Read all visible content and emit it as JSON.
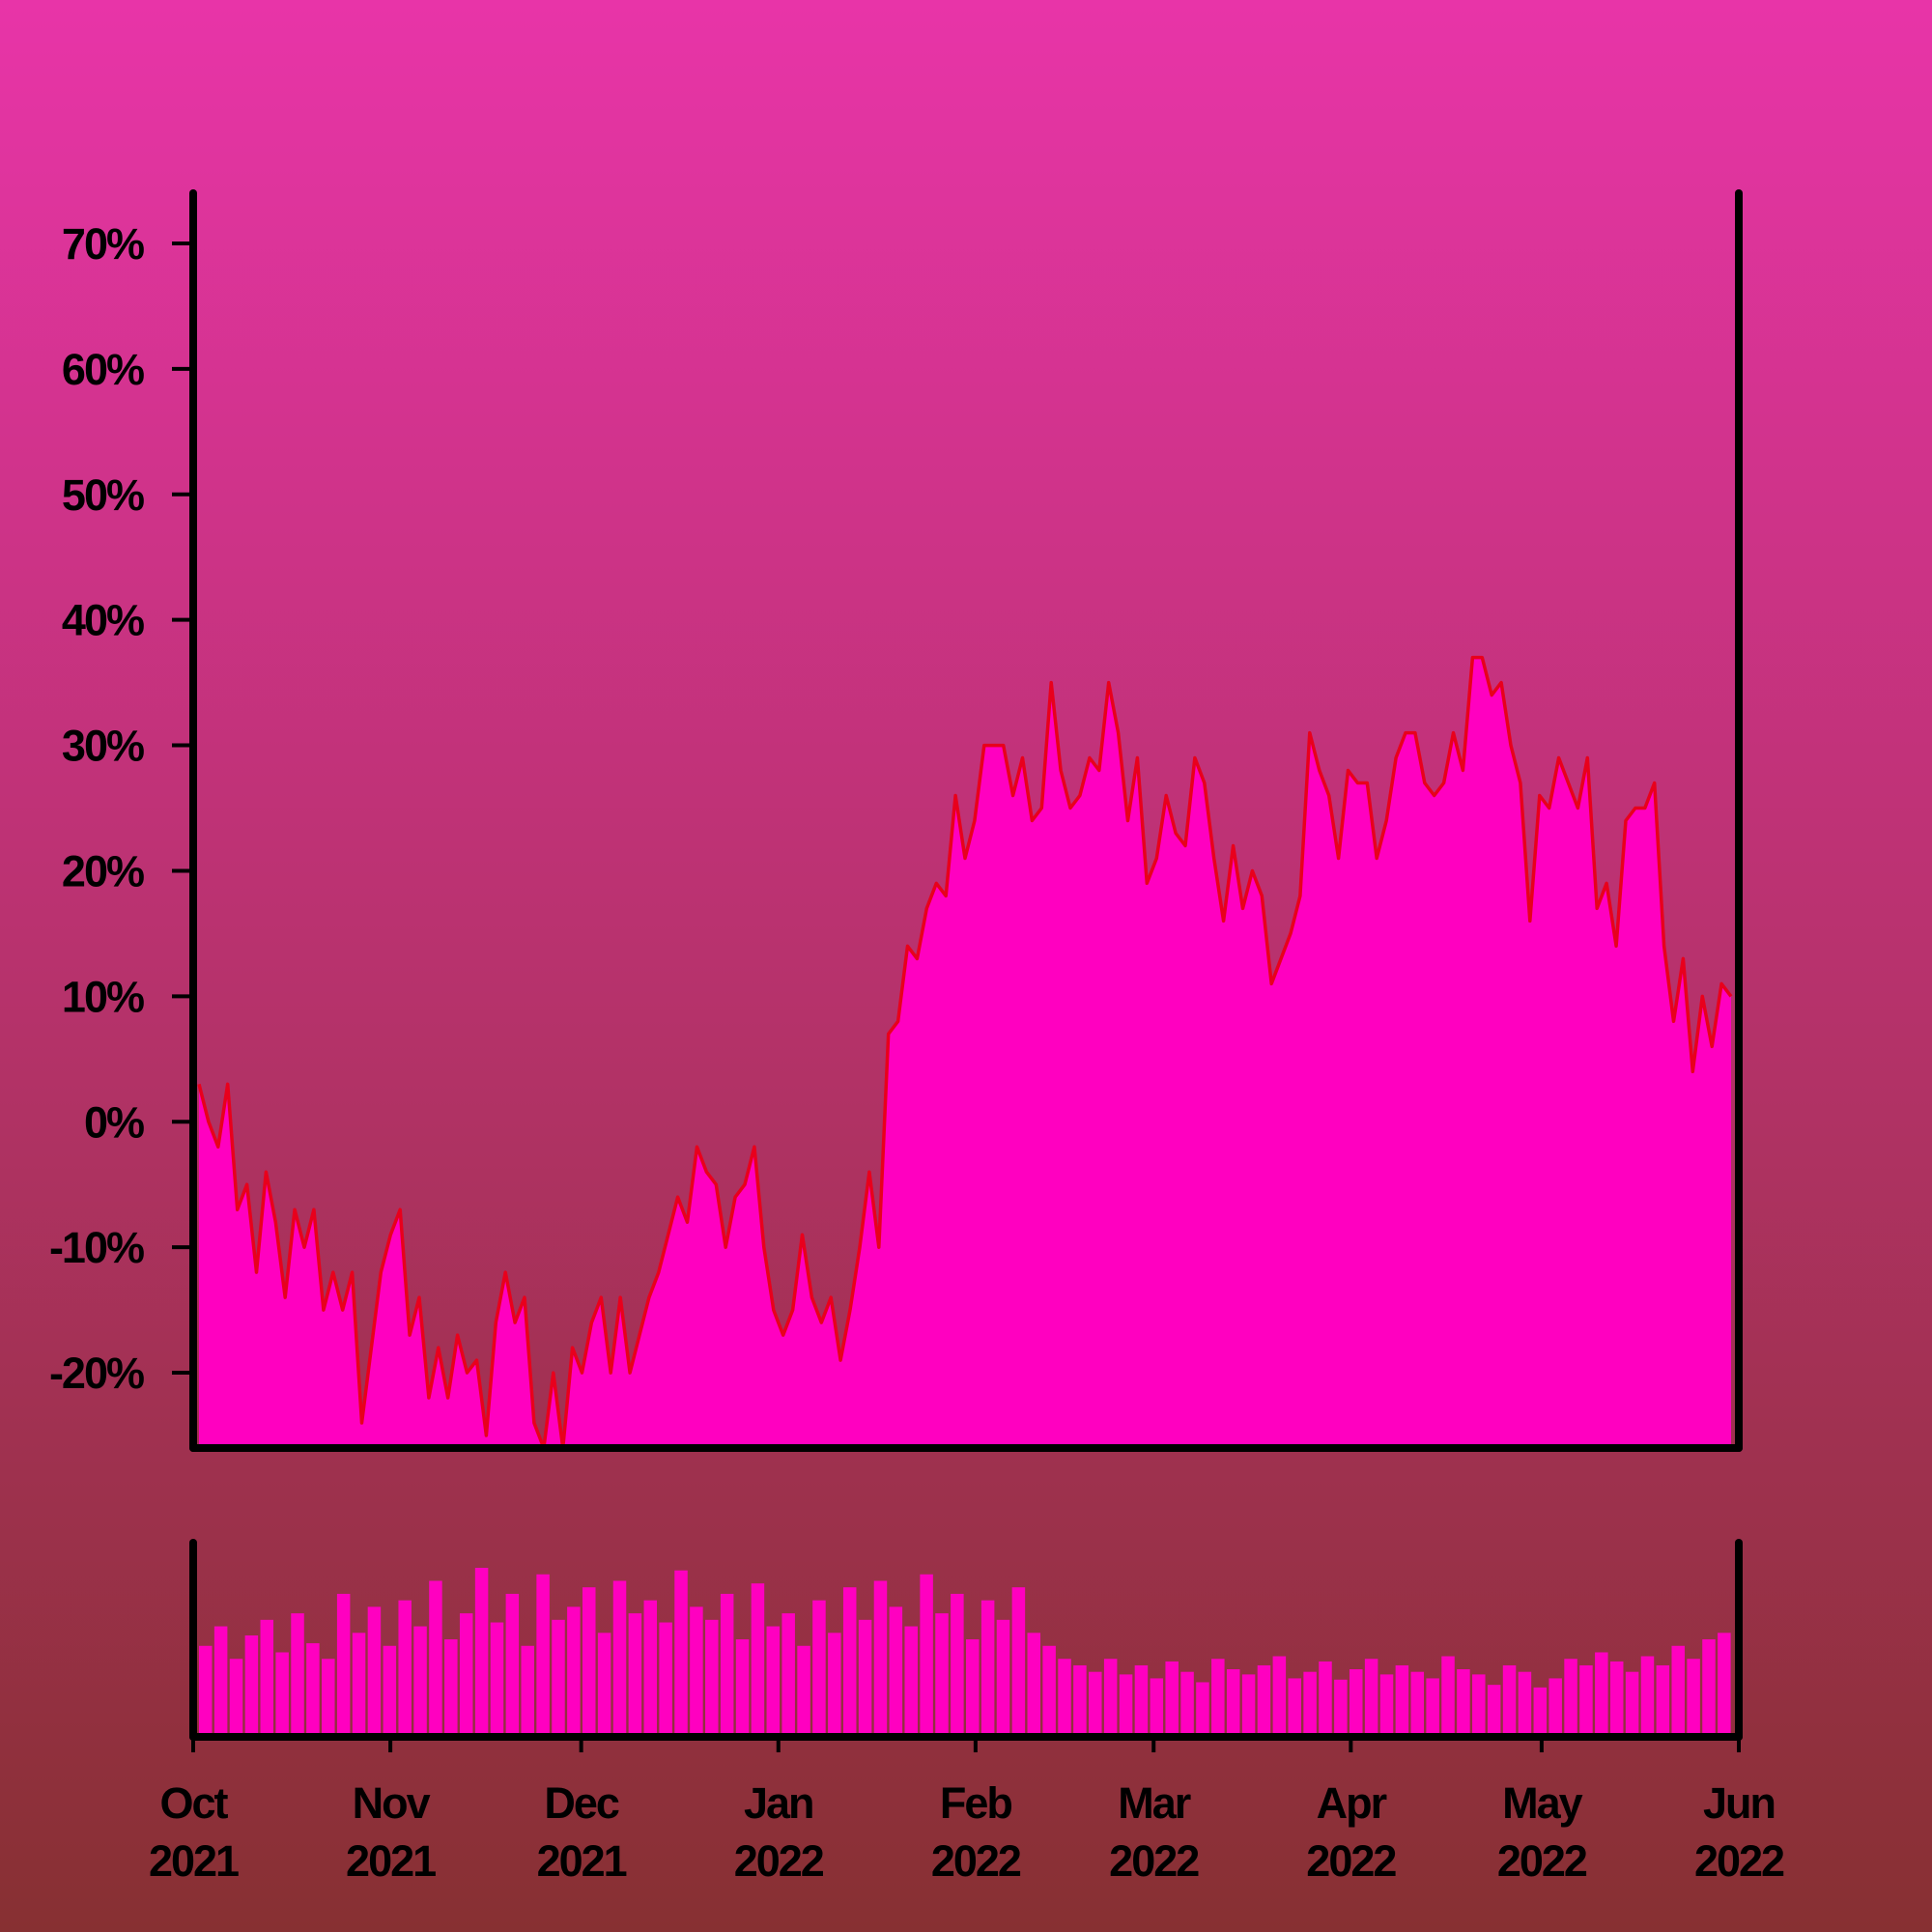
{
  "chart_data": {
    "type": "area",
    "color": "#ff00c0",
    "line_color": "#e8001c",
    "xlim": [
      "2021-10",
      "2022-06"
    ],
    "xticks": [
      {
        "value": "2021-10",
        "label": "Oct 2021"
      },
      {
        "value": "2021-11",
        "label": "Nov 2021"
      },
      {
        "value": "2021-12",
        "label": "Dec 2021"
      },
      {
        "value": "2022-01",
        "label": "Jan 2022"
      },
      {
        "value": "2022-02",
        "label": "Feb 2022"
      },
      {
        "value": "2022-03",
        "label": "Mar 2022"
      },
      {
        "value": "2022-04",
        "label": "Apr 2022"
      },
      {
        "value": "2022-05",
        "label": "May 2022"
      },
      {
        "value": "2022-06",
        "label": "Jun 2022"
      }
    ],
    "ylim": [
      -26,
      74
    ],
    "yticks": [
      {
        "value": -20,
        "label": "-20%"
      },
      {
        "value": -10,
        "label": "-10%"
      },
      {
        "value": 0,
        "label": "0%"
      },
      {
        "value": 10,
        "label": "10%"
      },
      {
        "value": 20,
        "label": "20%"
      },
      {
        "value": 30,
        "label": "30%"
      },
      {
        "value": 40,
        "label": "40%"
      },
      {
        "value": 50,
        "label": "50%"
      },
      {
        "value": 60,
        "label": "60%"
      },
      {
        "value": 70,
        "label": "70%"
      }
    ],
    "values": [
      3,
      0,
      -2,
      3,
      -7,
      -5,
      -12,
      -4,
      -8,
      -14,
      -7,
      -10,
      -7,
      -15,
      -12,
      -15,
      -12,
      -24,
      -18,
      -12,
      -9,
      -7,
      -17,
      -14,
      -22,
      -18,
      -22,
      -17,
      -20,
      -19,
      -25,
      -16,
      -12,
      -16,
      -14,
      -24,
      -26,
      -20,
      -26,
      -18,
      -20,
      -16,
      -14,
      -20,
      -14,
      -20,
      -17,
      -14,
      -12,
      -9,
      -6,
      -8,
      -2,
      -4,
      -5,
      -10,
      -6,
      -5,
      -2,
      -10,
      -15,
      -17,
      -15,
      -9,
      -14,
      -16,
      -14,
      -19,
      -15,
      -10,
      -4,
      -10,
      7,
      8,
      14,
      13,
      17,
      19,
      18,
      26,
      21,
      24,
      30,
      30,
      30,
      26,
      29,
      24,
      25,
      35,
      28,
      25,
      26,
      29,
      28,
      35,
      31,
      24,
      29,
      19,
      21,
      26,
      23,
      22,
      29,
      27,
      21,
      16,
      22,
      17,
      20,
      18,
      11,
      13,
      15,
      18,
      31,
      28,
      26,
      21,
      28,
      27,
      27,
      21,
      24,
      29,
      31,
      31,
      27,
      26,
      27,
      31,
      28,
      37,
      37,
      34,
      35,
      30,
      27,
      16,
      26,
      25,
      29,
      27,
      25,
      29,
      17,
      19,
      14,
      24,
      25,
      25,
      27,
      14,
      8,
      13,
      4,
      10,
      6,
      11,
      10
    ],
    "volume": {
      "type": "bar",
      "color": "#ff00c0",
      "values": [
        70,
        85,
        60,
        78,
        90,
        65,
        95,
        72,
        60,
        110,
        80,
        100,
        70,
        105,
        85,
        120,
        75,
        95,
        130,
        88,
        110,
        70,
        125,
        90,
        100,
        115,
        80,
        120,
        95,
        105,
        88,
        128,
        100,
        90,
        110,
        75,
        118,
        85,
        95,
        70,
        105,
        80,
        115,
        90,
        120,
        100,
        85,
        125,
        95,
        110,
        75,
        105,
        90,
        115,
        80,
        70,
        60,
        55,
        50,
        60,
        48,
        55,
        45,
        58,
        50,
        42,
        60,
        52,
        48,
        55,
        62,
        45,
        50,
        58,
        44,
        52,
        60,
        48,
        55,
        50,
        45,
        62,
        52,
        48,
        40,
        55,
        50,
        38,
        45,
        60,
        55,
        65,
        58,
        50,
        62,
        55,
        70,
        60,
        75,
        80
      ]
    }
  }
}
